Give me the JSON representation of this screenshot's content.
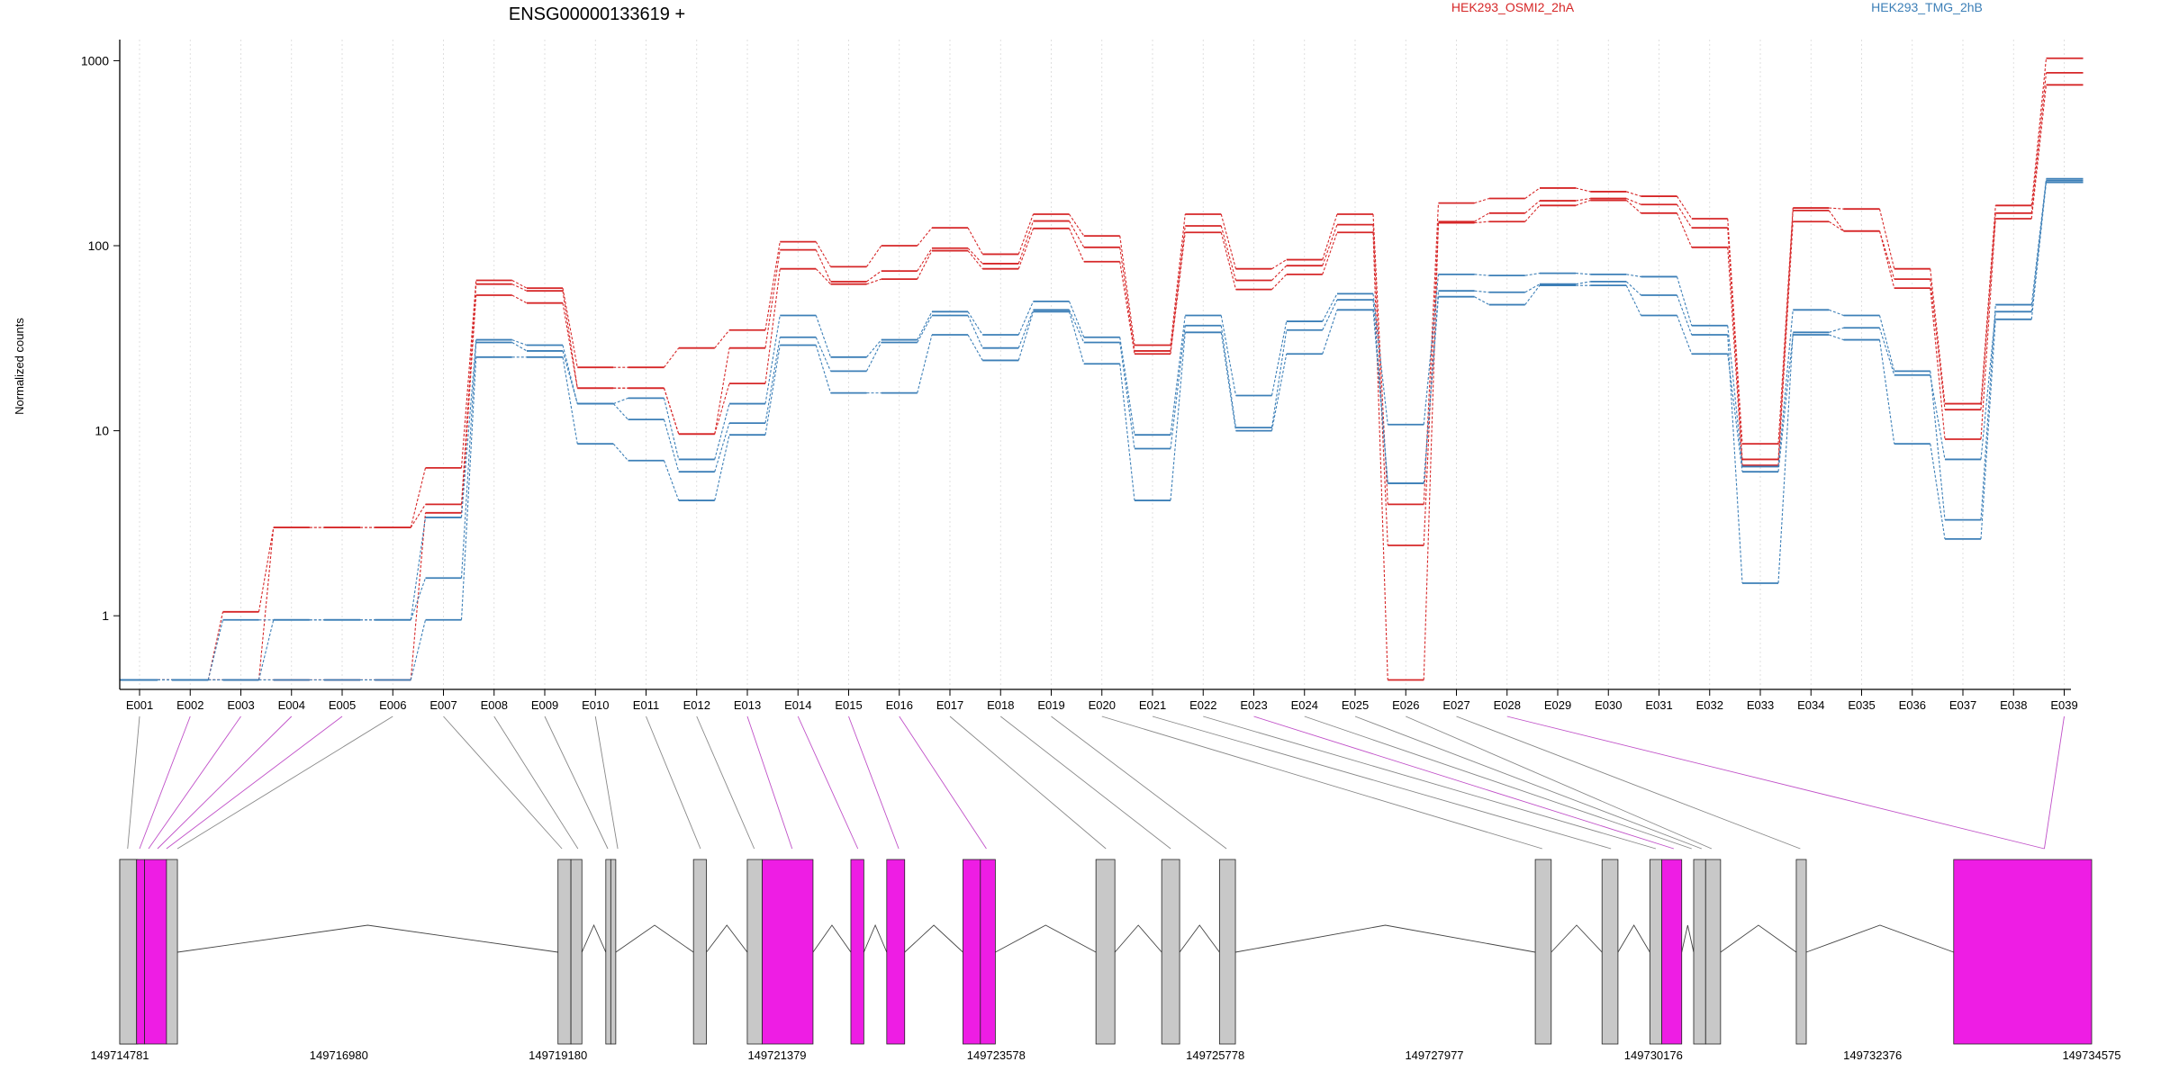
{
  "chart_data": {
    "type": "line",
    "title": "ENSG00000133619 +",
    "ylabel": "Normalized counts",
    "y_scale": "log",
    "ylim": [
      0.4,
      1300
    ],
    "yticks": [
      1,
      10,
      100,
      1000
    ],
    "ytick_labels": [
      "1",
      "10",
      "100",
      "1000"
    ],
    "categories": [
      "E001",
      "E002",
      "E003",
      "E004",
      "E005",
      "E006",
      "E007",
      "E008",
      "E009",
      "E010",
      "E011",
      "E012",
      "E013",
      "E014",
      "E015",
      "E016",
      "E017",
      "E018",
      "E019",
      "E020",
      "E021",
      "E022",
      "E023",
      "E024",
      "E025",
      "E026",
      "E027",
      "E028",
      "E029",
      "E030",
      "E031",
      "E032",
      "E033",
      "E034",
      "E035",
      "E036",
      "E037",
      "E038",
      "E039"
    ],
    "legend": [
      {
        "name": "HEK293_OSMI2_2hA",
        "color": "#d62728"
      },
      {
        "name": "HEK293_TMG_2hB",
        "color": "#3c7fb7"
      }
    ],
    "series": [
      {
        "group": "HEK293_OSMI2_2hA",
        "color": "#d62728",
        "values": [
          0.45,
          0.45,
          1.05,
          3.0,
          3.0,
          3.0,
          6.3,
          65,
          59,
          22,
          22,
          28,
          35,
          105,
          77,
          100,
          125,
          90,
          148,
          113,
          29,
          148,
          75,
          84,
          148,
          4.0,
          170,
          180,
          205,
          196,
          185,
          140,
          8.5,
          160,
          158,
          75,
          14,
          165,
          1030
        ]
      },
      {
        "group": "HEK293_OSMI2_2hA",
        "color": "#d62728",
        "values": [
          0.45,
          0.45,
          0.45,
          3.0,
          3.0,
          3.0,
          4.0,
          62,
          57,
          17,
          17,
          9.6,
          28,
          95,
          64,
          73,
          97,
          80,
          136,
          98,
          27,
          128,
          65,
          78,
          130,
          2.4,
          135,
          150,
          175,
          180,
          167,
          125,
          7.0,
          155,
          120,
          66,
          13,
          150,
          860
        ]
      },
      {
        "group": "HEK293_OSMI2_2hA",
        "color": "#d62728",
        "values": [
          0.45,
          0.45,
          0.45,
          0.45,
          0.45,
          0.45,
          3.6,
          54,
          49,
          17,
          17,
          9.6,
          18,
          75,
          62,
          66,
          94,
          75,
          124,
          82,
          26,
          118,
          58,
          70,
          118,
          0.45,
          133,
          135,
          165,
          176,
          150,
          98,
          6.5,
          135,
          120,
          59,
          9.0,
          140,
          740
        ]
      },
      {
        "group": "HEK293_TMG_2hB",
        "color": "#3c7fb7",
        "values": [
          0.45,
          0.45,
          0.95,
          0.95,
          0.95,
          0.95,
          3.4,
          31,
          29,
          14,
          15,
          7.0,
          14,
          42,
          25,
          31,
          44,
          33,
          50,
          32,
          9.5,
          42,
          15.5,
          39,
          55,
          10.8,
          70,
          69,
          71,
          70,
          68,
          37,
          6.4,
          45,
          42,
          21,
          3.3,
          48,
          230
        ]
      },
      {
        "group": "HEK293_TMG_2hB",
        "color": "#3c7fb7",
        "values": [
          0.45,
          0.45,
          0.45,
          0.95,
          0.95,
          0.95,
          1.6,
          30,
          27,
          14,
          11.5,
          6.0,
          11,
          32,
          21,
          30,
          42,
          28,
          45,
          30,
          8.0,
          37,
          10.4,
          35,
          51,
          5.2,
          57,
          56,
          62,
          64,
          54,
          33,
          1.5,
          34,
          36,
          20,
          7.0,
          44,
          225
        ]
      },
      {
        "group": "HEK293_TMG_2hB",
        "color": "#3c7fb7",
        "values": [
          0.45,
          0.45,
          0.45,
          0.45,
          0.45,
          0.45,
          0.95,
          25,
          25,
          8.5,
          6.9,
          4.2,
          9.5,
          29,
          16,
          16,
          33,
          24,
          44,
          23,
          4.2,
          34,
          10,
          26,
          45,
          5.2,
          53,
          48,
          61,
          61,
          42,
          26,
          6.0,
          33,
          31,
          8.5,
          2.6,
          40,
          220
        ]
      }
    ],
    "gene_model": {
      "coordinate_labels": [
        "149714781",
        "149716980",
        "149719180",
        "149721379",
        "149723578",
        "149725778",
        "149727977",
        "149730176",
        "149732376",
        "149734575"
      ],
      "coordinate_range": [
        149714781,
        149734575
      ],
      "highlight_color": "#ee1de4",
      "exon_color": "#c8c8c8",
      "exons": [
        {
          "start": 149714781,
          "end": 149714950,
          "highlight": false
        },
        {
          "start": 149714950,
          "end": 149715030,
          "highlight": true
        },
        {
          "start": 149715030,
          "end": 149715250,
          "highlight": true
        },
        {
          "start": 149715250,
          "end": 149715360,
          "highlight": false
        },
        {
          "start": 149719180,
          "end": 149719310,
          "highlight": false
        },
        {
          "start": 149719310,
          "end": 149719420,
          "highlight": false
        },
        {
          "start": 149719660,
          "end": 149719710,
          "highlight": false
        },
        {
          "start": 149719710,
          "end": 149719760,
          "highlight": false
        },
        {
          "start": 149720540,
          "end": 149720670,
          "highlight": false
        },
        {
          "start": 149721080,
          "end": 149721230,
          "highlight": false
        },
        {
          "start": 149721230,
          "end": 149721740,
          "highlight": true
        },
        {
          "start": 149722120,
          "end": 149722250,
          "highlight": true
        },
        {
          "start": 149722480,
          "end": 149722660,
          "highlight": true
        },
        {
          "start": 149723245,
          "end": 149723420,
          "highlight": true
        },
        {
          "start": 149723420,
          "end": 149723570,
          "highlight": true
        },
        {
          "start": 149724580,
          "end": 149724770,
          "highlight": false
        },
        {
          "start": 149725240,
          "end": 149725420,
          "highlight": false
        },
        {
          "start": 149725820,
          "end": 149725980,
          "highlight": false
        },
        {
          "start": 149728990,
          "end": 149729150,
          "highlight": false
        },
        {
          "start": 149729660,
          "end": 149729820,
          "highlight": false
        },
        {
          "start": 149730140,
          "end": 149730260,
          "highlight": false
        },
        {
          "start": 149730260,
          "end": 149730460,
          "highlight": true
        },
        {
          "start": 149730580,
          "end": 149730700,
          "highlight": false
        },
        {
          "start": 149730700,
          "end": 149730850,
          "highlight": false
        },
        {
          "start": 149731610,
          "end": 149731710,
          "highlight": false
        },
        {
          "start": 149733190,
          "end": 149734575,
          "highlight": true
        }
      ],
      "exon_bin_link_positions": [
        149714860,
        149714980,
        149715070,
        149715160,
        149715250,
        149715360,
        149719220,
        149719380,
        149719680,
        149719780,
        149720610,
        149721150,
        149721530,
        149722190,
        149722600,
        149723480,
        149724680,
        149725330,
        149725890,
        149729060,
        149729750,
        149730200,
        149730380,
        149730560,
        149730660,
        149730760,
        149731650,
        149734100
      ]
    }
  }
}
